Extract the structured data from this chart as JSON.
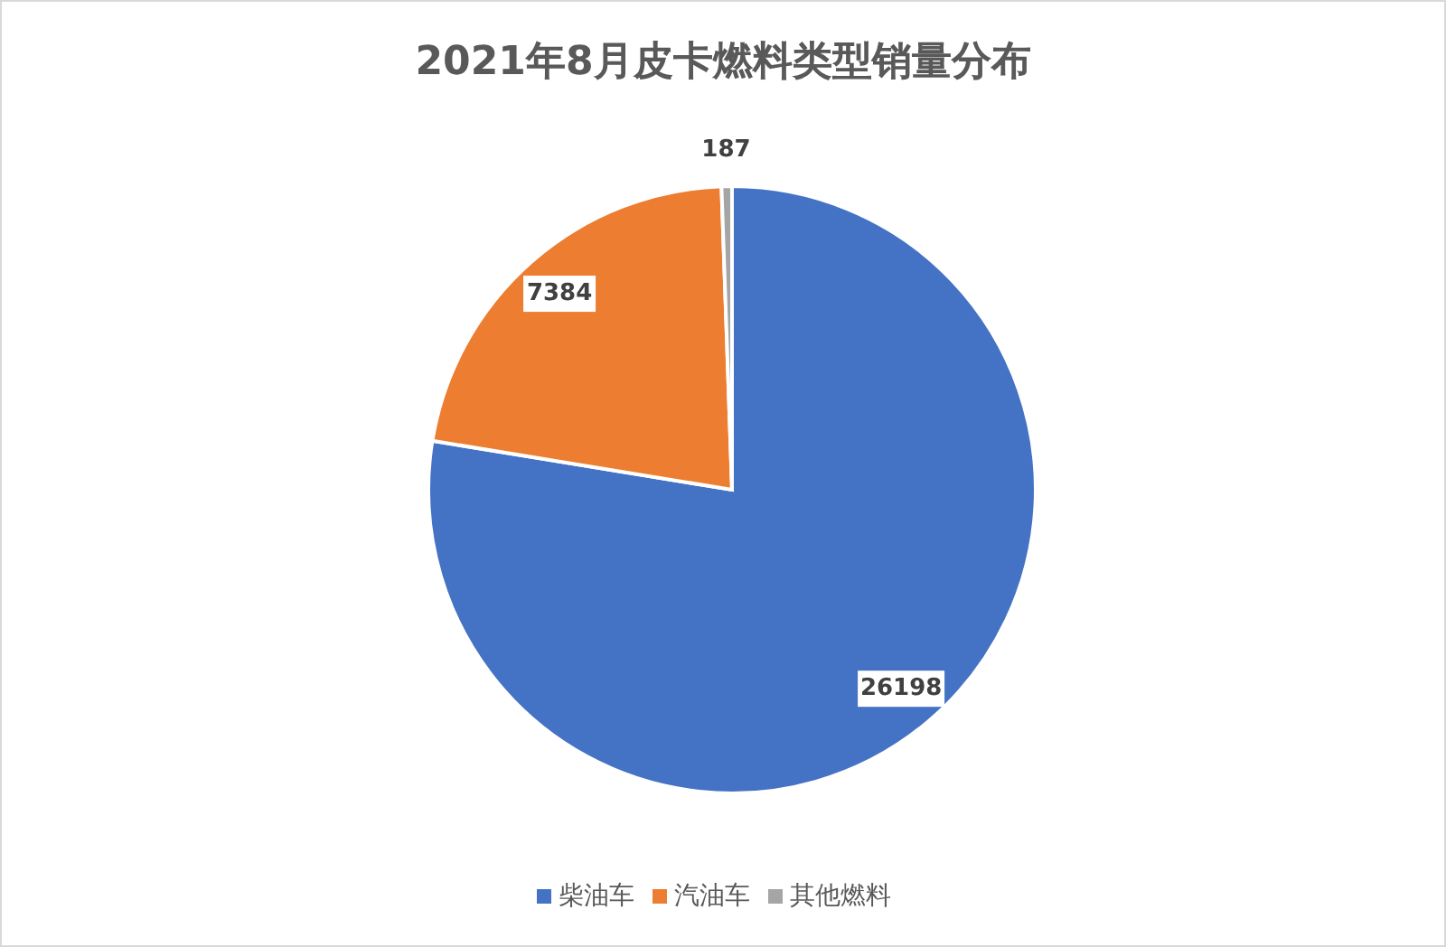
{
  "chart_data": {
    "type": "pie",
    "title": "2021年8月皮卡燃料类型销量分布",
    "categories": [
      "柴油车",
      "汽油车",
      "其他燃料"
    ],
    "values": [
      26198,
      7384,
      187
    ],
    "colors": [
      "#4472c4",
      "#ed7d31",
      "#a5a5a5"
    ],
    "data_labels": true,
    "legend": "bottom"
  }
}
